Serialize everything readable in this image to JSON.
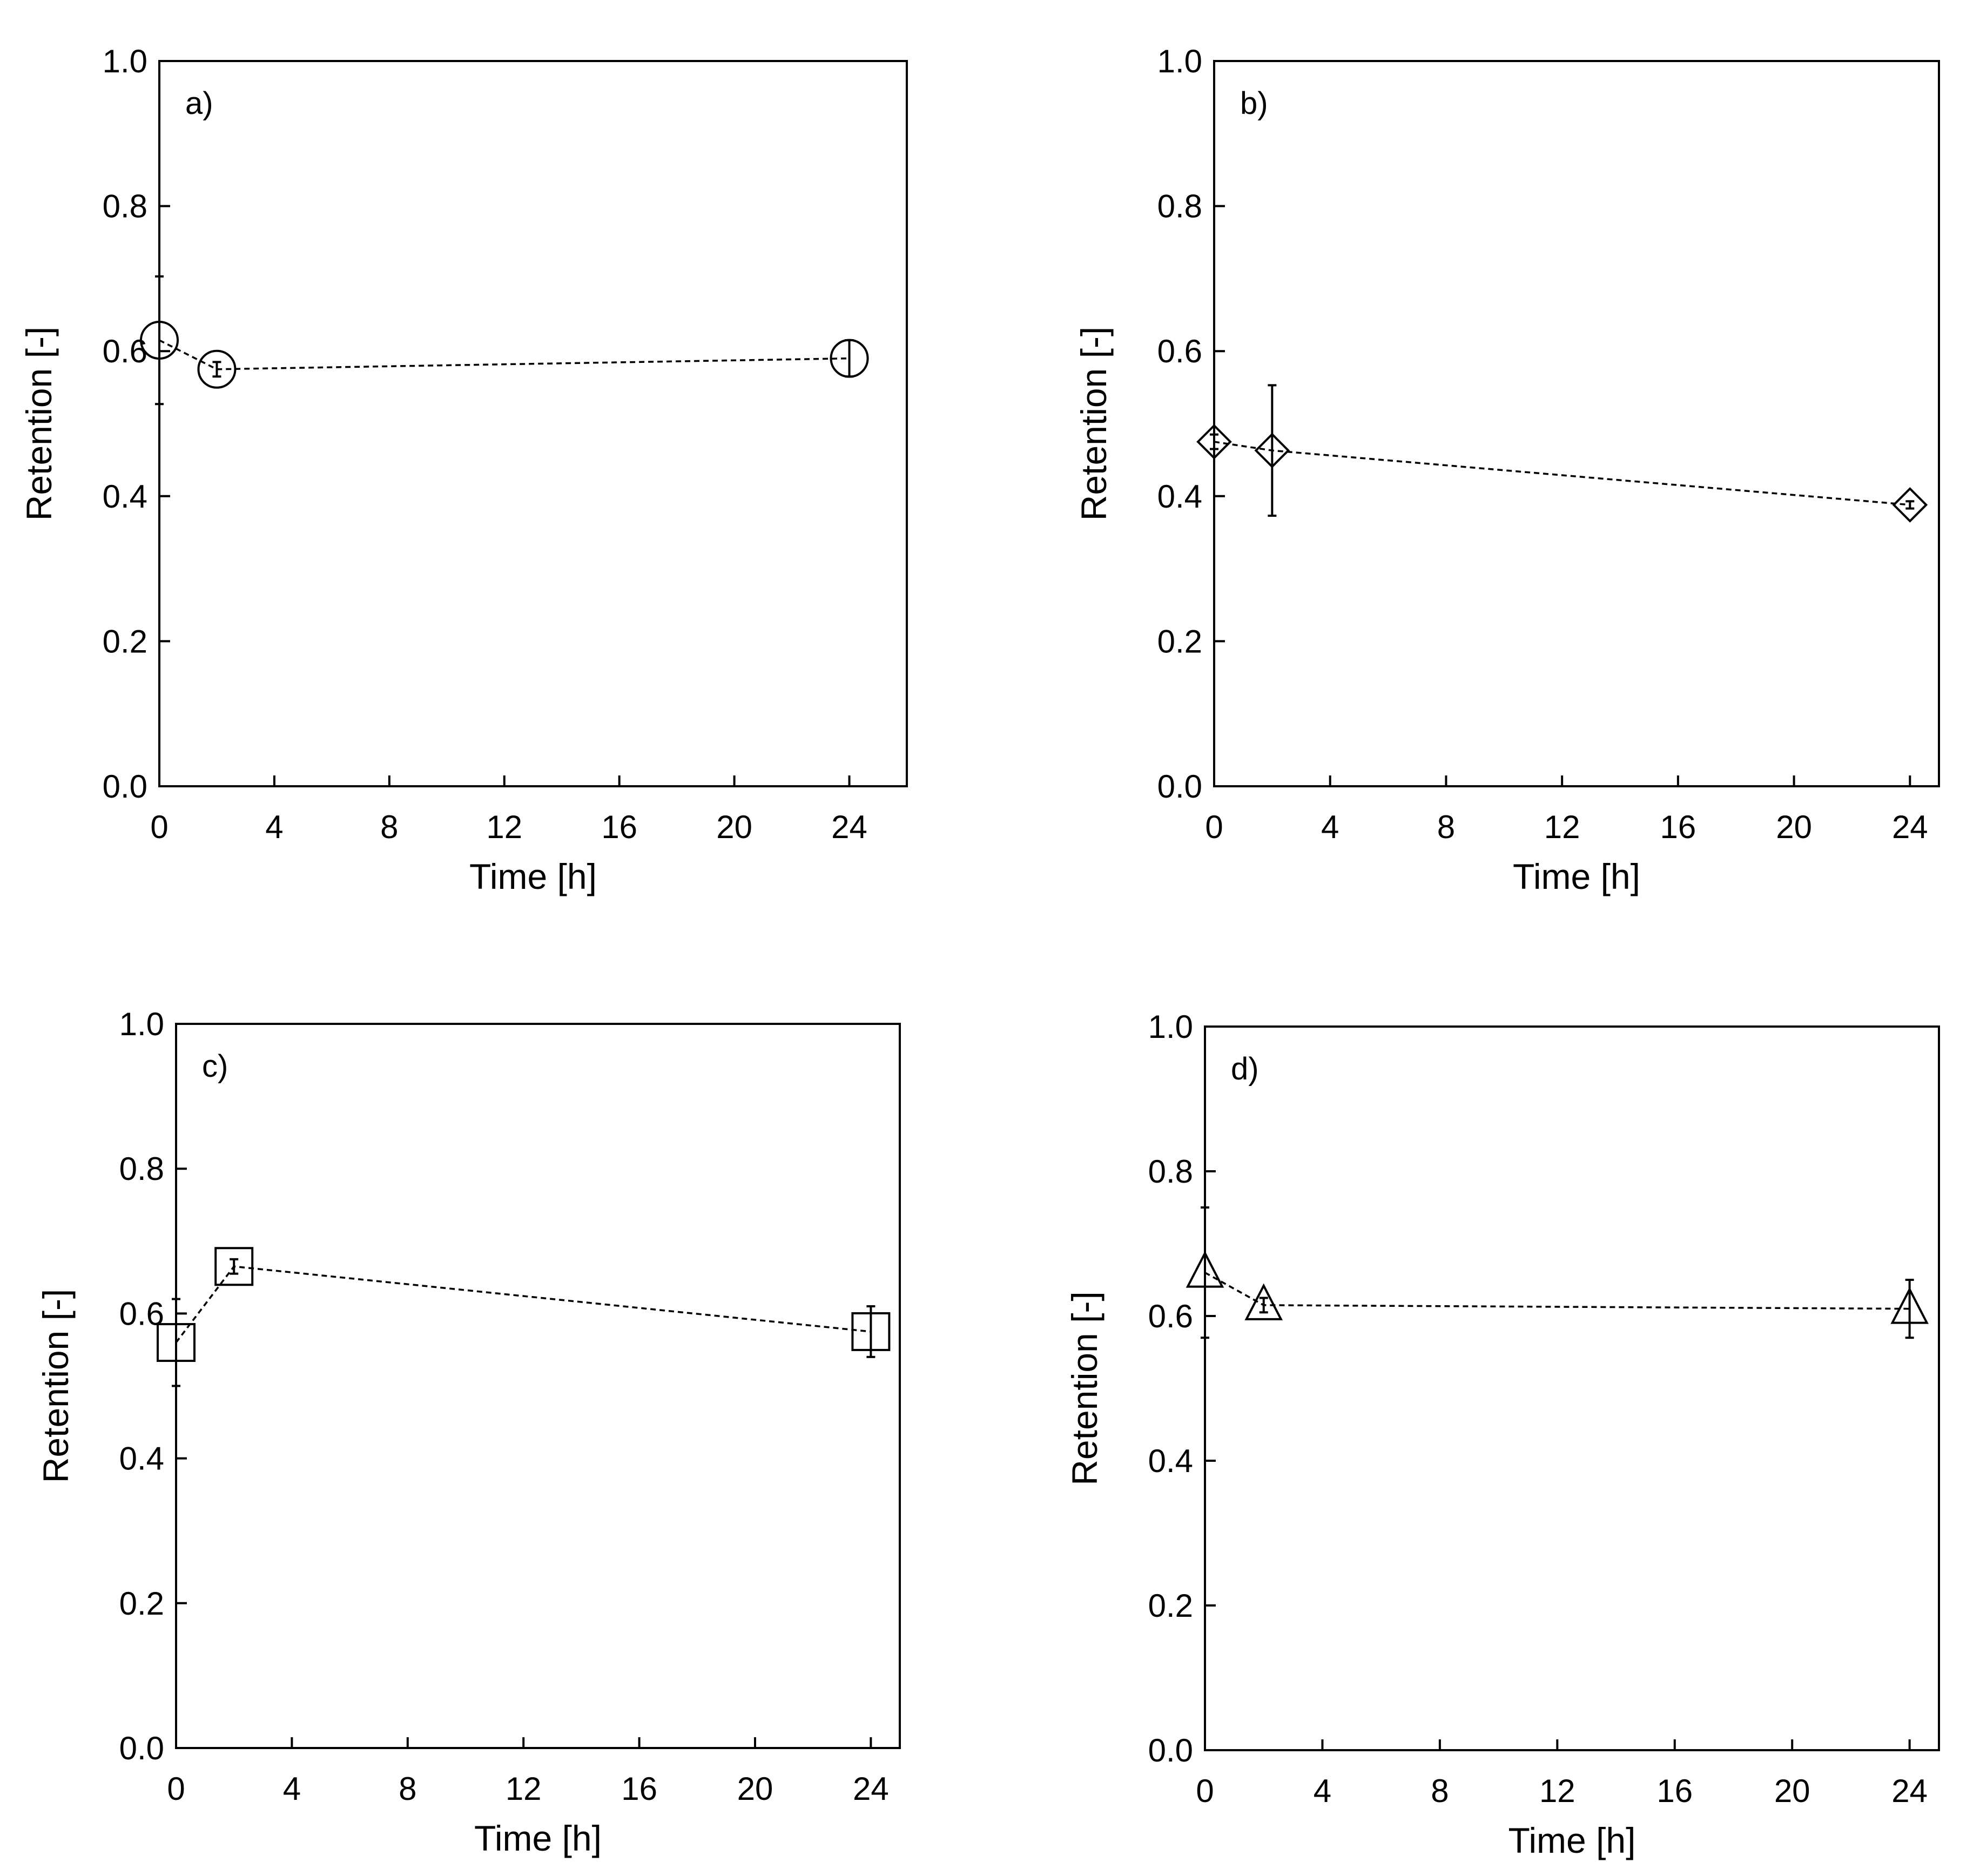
{
  "chart_data": [
    {
      "type": "line",
      "panel_label": "a)",
      "xlabel": "Time [h]",
      "ylabel": "Retention [-]",
      "xlim": [
        0,
        26
      ],
      "ylim": [
        0,
        1.0
      ],
      "x_ticks": [
        0,
        4,
        8,
        12,
        16,
        20,
        24
      ],
      "y_ticks": [
        "0.0",
        "0.2",
        "0.4",
        "0.6",
        "0.8",
        "1.0"
      ],
      "marker": "circle",
      "line_style": "dashed",
      "series": [
        {
          "name": "a",
          "x": [
            0,
            2,
            24
          ],
          "y": [
            0.615,
            0.575,
            0.59
          ],
          "error": [
            0.088,
            0.01,
            0.025
          ]
        }
      ]
    },
    {
      "type": "line",
      "panel_label": "b)",
      "xlabel": "Time [h]",
      "ylabel": "Retention [-]",
      "xlim": [
        0,
        25
      ],
      "ylim": [
        0,
        1.0
      ],
      "x_ticks": [
        0,
        4,
        8,
        12,
        16,
        20,
        24
      ],
      "y_ticks": [
        "0.0",
        "0.2",
        "0.4",
        "0.6",
        "0.8",
        "1.0"
      ],
      "marker": "diamond",
      "line_style": "dashed",
      "series": [
        {
          "name": "b",
          "x": [
            0,
            2,
            24
          ],
          "y": [
            0.475,
            0.463,
            0.388
          ],
          "error": [
            0.01,
            0.09,
            0.005
          ]
        }
      ]
    },
    {
      "type": "line",
      "panel_label": "c)",
      "xlabel": "Time [h]",
      "ylabel": "Retention [-]",
      "xlim": [
        0,
        25
      ],
      "ylim": [
        0,
        1.0
      ],
      "x_ticks": [
        0,
        4,
        8,
        12,
        16,
        20,
        24
      ],
      "y_ticks": [
        "0.0",
        "0.2",
        "0.4",
        "0.6",
        "0.8",
        "1.0"
      ],
      "marker": "square",
      "line_style": "dashed",
      "series": [
        {
          "name": "c",
          "x": [
            0,
            2,
            24
          ],
          "y": [
            0.56,
            0.665,
            0.575
          ],
          "error": [
            0.06,
            0.01,
            0.035
          ]
        }
      ]
    },
    {
      "type": "line",
      "panel_label": "d)",
      "xlabel": "Time [h]",
      "ylabel": "Retention [-]",
      "xlim": [
        0,
        25
      ],
      "ylim": [
        0,
        1.0
      ],
      "x_ticks": [
        0,
        4,
        8,
        12,
        16,
        20,
        24
      ],
      "y_ticks": [
        "0.0",
        "0.2",
        "0.4",
        "0.6",
        "0.8",
        "1.0"
      ],
      "marker": "triangle",
      "line_style": "dashed",
      "series": [
        {
          "name": "d",
          "x": [
            0,
            2,
            24
          ],
          "y": [
            0.66,
            0.615,
            0.61
          ],
          "error": [
            0.09,
            0.01,
            0.04
          ]
        }
      ]
    }
  ]
}
